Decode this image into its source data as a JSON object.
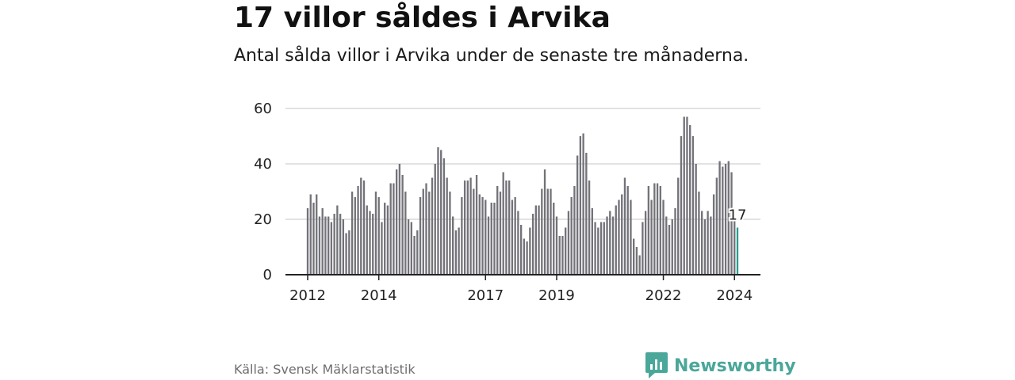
{
  "title": "17 villor såldes i Arvika",
  "subtitle": "Antal sålda villor i Arvika under de senaste tre månaderna.",
  "source": "Källa: Svensk Mäklarstatistik",
  "brand": {
    "name": "Newsworthy",
    "logo_icon": "newsworthy-bar-chart-icon",
    "color": "#4aa79a"
  },
  "colors": {
    "bar": "#727279",
    "highlight": "#2a9d8f",
    "grid": "#d9d9d9",
    "axis": "#222222"
  },
  "chart_data": {
    "type": "bar",
    "title": "17 villor såldes i Arvika",
    "xlabel": "",
    "ylabel": "",
    "ylim": [
      0,
      60
    ],
    "yticks": [
      0,
      20,
      40,
      60
    ],
    "xtick_labels": [
      "2012",
      "2014",
      "2017",
      "2019",
      "2022",
      "2024"
    ],
    "x_start": "2012-01",
    "x_end": "2024-01",
    "grid": true,
    "legend": "none",
    "highlight_label": "17",
    "series": [
      {
        "values": [
          24,
          29,
          26,
          29,
          21,
          24,
          21,
          21,
          19,
          22,
          25,
          22,
          20,
          15,
          16,
          30,
          28,
          32,
          35,
          34,
          25,
          23,
          22,
          30,
          28,
          19,
          26,
          25,
          33,
          33,
          38,
          40,
          36,
          30,
          20,
          19,
          14,
          16,
          28,
          31,
          33,
          30,
          35,
          40,
          46,
          45,
          42,
          35,
          30,
          21,
          16,
          17,
          28,
          34,
          34,
          35,
          31,
          36,
          29,
          28,
          27,
          21,
          26,
          26,
          32,
          30,
          37,
          34,
          34,
          27,
          28,
          23,
          18,
          13,
          12,
          17,
          22,
          25,
          25,
          31,
          38,
          31,
          31,
          26,
          21,
          14,
          14,
          17,
          23,
          28,
          32,
          43,
          50,
          51,
          44,
          34,
          24,
          19,
          17,
          19,
          19,
          21,
          23,
          21,
          25,
          27,
          29,
          35,
          32,
          27,
          13,
          10,
          7,
          19,
          23,
          32,
          27,
          33,
          33,
          32,
          27,
          21,
          18,
          20,
          24,
          35,
          50,
          57,
          57,
          54,
          50,
          40,
          30,
          23,
          20,
          23,
          21,
          29,
          35,
          41,
          39,
          40,
          41,
          37,
          20,
          17
        ]
      }
    ]
  }
}
